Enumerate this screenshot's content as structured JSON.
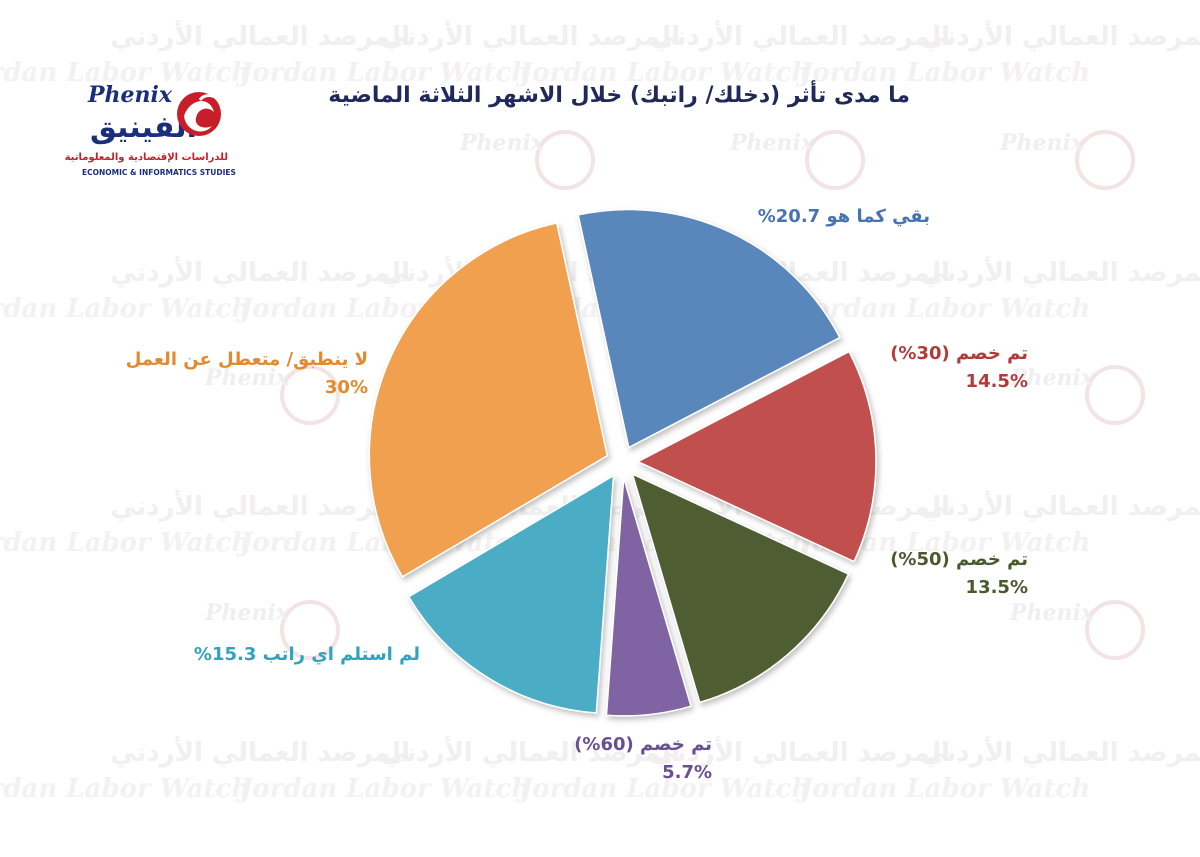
{
  "chart_data": {
    "type": "pie",
    "title": "ما مدى تأثر (دخلك/ راتبك) خلال الاشهر الثلاثة الماضية",
    "exploded": true,
    "slices": [
      {
        "label": "بقي كما هو",
        "value": 20.7,
        "color": "#5a87bb",
        "text_color": "#4574b0",
        "line1": "بقي كما هو 20.7%",
        "line2": ""
      },
      {
        "label": "تم خصم (30%)",
        "value": 14.5,
        "color": "#c0504d",
        "text_color": "#b03c3a",
        "line1": "تم خصم (30%)",
        "line2": "14.5%"
      },
      {
        "label": "تم خصم (50%)",
        "value": 13.5,
        "color": "#4f5d33",
        "text_color": "#4a5a2c",
        "line1": "تم خصم (50%)",
        "line2": "13.5%"
      },
      {
        "label": "تم خصم (60%)",
        "value": 5.7,
        "color": "#8064a2",
        "text_color": "#6a4f93",
        "line1": "تم خصم (60%)",
        "line2": "5.7%"
      },
      {
        "label": "لم استلم اي راتب",
        "value": 15.3,
        "color": "#4bacc6",
        "text_color": "#31a3c1",
        "line1": "لم استلم اي راتب 15.3%",
        "line2": ""
      },
      {
        "label": "لا ينطبق/ متعطل عن العمل",
        "value": 30,
        "color": "#f0a050",
        "text_color": "#e38a2e",
        "line1": "لا ينطبق/ متعطل عن العمل",
        "line2": "30%"
      }
    ]
  },
  "logo": {
    "name_en": "Phenix",
    "name_ar": "الفينيق",
    "subtitle_ar": "للدراسات الإقتصادية والمعلوماتية",
    "subtitle_en": "ECONOMIC & INFORMATICS STUDIES"
  },
  "watermark": {
    "text_ar": "المرصد العمالي الأردني",
    "text_en": "Jordan Labor Watch"
  },
  "colors": {
    "title": "#1f2a5a",
    "logo_blue": "#1b2e7a",
    "logo_red": "#c81e2a",
    "watermark": "#f1efef"
  }
}
